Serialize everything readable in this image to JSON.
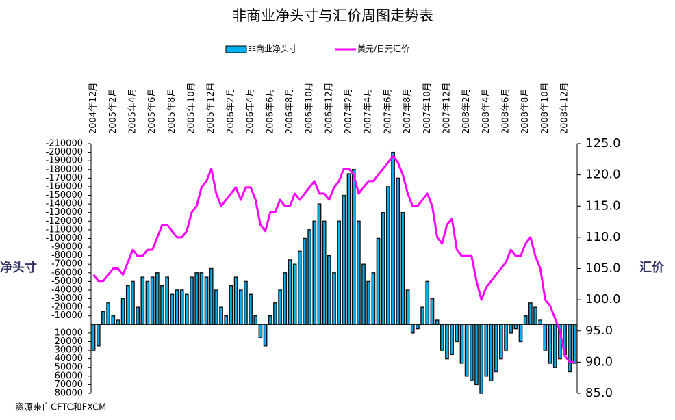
{
  "chart_data": {
    "type": "bar",
    "title": "非商业净头寸与汇价周图走势表",
    "left_label": "净头寸",
    "right_label": "汇价",
    "source": "资源来自CFTC和FXCM",
    "categories": [
      "2004年12月",
      null,
      null,
      null,
      "2005年2月",
      null,
      null,
      null,
      "2005年4月",
      null,
      null,
      null,
      "2005年6月",
      null,
      null,
      null,
      "2005年8月",
      null,
      null,
      null,
      "2005年10月",
      null,
      null,
      null,
      "2005年12月",
      null,
      null,
      null,
      "2006年2月",
      null,
      null,
      null,
      "2006年4月",
      null,
      null,
      null,
      "2006年6月",
      null,
      null,
      null,
      "2006年8月",
      null,
      null,
      null,
      "2006年10月",
      null,
      null,
      null,
      "2006年12月",
      null,
      null,
      null,
      "2007年2月",
      null,
      null,
      null,
      "2007年4月",
      null,
      null,
      null,
      "2007年6月",
      null,
      null,
      null,
      "2007年8月",
      null,
      null,
      null,
      "2007年10月",
      null,
      null,
      null,
      "2007年12月",
      null,
      null,
      null,
      "2008年2月",
      null,
      null,
      null,
      "2008年4月",
      null,
      null,
      null,
      "2008年6月",
      null,
      null,
      null,
      "2008年8月",
      null,
      null,
      null,
      "2008年10月",
      null,
      null,
      null,
      "2008年12月",
      null,
      null
    ],
    "series": [
      {
        "name": "非商业净头寸",
        "color": "#00b0f0",
        "values": [
          30000,
          25000,
          -15000,
          -25000,
          -10000,
          -5000,
          -30000,
          -45000,
          -50000,
          -20000,
          -55000,
          -50000,
          -55000,
          -60000,
          -45000,
          -55000,
          -35000,
          -40000,
          -40000,
          -35000,
          -55000,
          -60000,
          -60000,
          -55000,
          -65000,
          -40000,
          -20000,
          -10000,
          -45000,
          -55000,
          -40000,
          -50000,
          -35000,
          -10000,
          15000,
          25000,
          -10000,
          -25000,
          -40000,
          -60000,
          -75000,
          -70000,
          -85000,
          -100000,
          -110000,
          -120000,
          -140000,
          -120000,
          -80000,
          -60000,
          -120000,
          -150000,
          -175000,
          -180000,
          -120000,
          -70000,
          -50000,
          -60000,
          -100000,
          -130000,
          -160000,
          -200000,
          -170000,
          -130000,
          -40000,
          10000,
          5000,
          -20000,
          -50000,
          -30000,
          -5000,
          30000,
          40000,
          35000,
          20000,
          45000,
          60000,
          65000,
          70000,
          80000,
          60000,
          65000,
          55000,
          40000,
          30000,
          10000,
          5000,
          20000,
          -10000,
          -25000,
          -20000,
          -5000,
          30000,
          45000,
          50000,
          40000,
          35000,
          55000,
          45000
        ]
      },
      {
        "name": "美元/日元汇价",
        "color": "#ff00ff",
        "type": "line",
        "axis": "y2",
        "values": [
          104,
          103,
          103,
          104,
          105,
          105,
          104,
          106,
          108,
          107,
          107,
          108,
          108,
          110,
          112,
          112,
          111,
          110,
          110,
          111,
          114,
          115,
          118,
          119,
          121,
          117,
          115,
          116,
          117,
          118,
          116,
          118,
          118,
          116,
          112,
          111,
          114,
          114,
          116,
          115,
          115,
          117,
          116,
          117,
          118,
          119,
          117,
          117,
          116,
          118,
          119,
          121,
          121,
          120,
          117,
          118,
          119,
          119,
          120,
          121,
          122,
          123,
          122,
          120,
          117,
          115,
          115,
          116,
          117,
          115,
          110,
          109,
          112,
          113,
          108,
          107,
          107,
          107,
          103,
          100,
          102,
          103,
          104,
          105,
          106,
          108,
          107,
          107,
          109,
          110,
          107,
          105,
          100,
          99,
          97,
          95,
          91,
          90,
          90
        ]
      }
    ],
    "ylim": [
      80000,
      -210000
    ],
    "yticks": [
      -210000,
      -200000,
      -190000,
      -180000,
      -170000,
      -160000,
      -150000,
      -140000,
      -130000,
      -120000,
      -110000,
      -100000,
      -90000,
      -80000,
      -70000,
      -60000,
      -50000,
      -40000,
      -30000,
      -20000,
      -10000,
      10000,
      20000,
      30000,
      40000,
      50000,
      60000,
      70000,
      80000
    ],
    "y2lim": [
      85,
      125
    ],
    "y2ticks": [
      {
        "value": 125,
        "label": "125.0"
      },
      {
        "value": 120,
        "label": "120.0"
      },
      {
        "value": 115,
        "label": "115.0"
      },
      {
        "value": 110,
        "label": "110.0"
      },
      {
        "value": 105,
        "label": "105.0"
      },
      {
        "value": 100,
        "label": "100.0"
      },
      {
        "value": 95,
        "label": "95.0"
      },
      {
        "value": 90,
        "label": "90.0"
      },
      {
        "value": 85,
        "label": "85.0"
      }
    ]
  }
}
